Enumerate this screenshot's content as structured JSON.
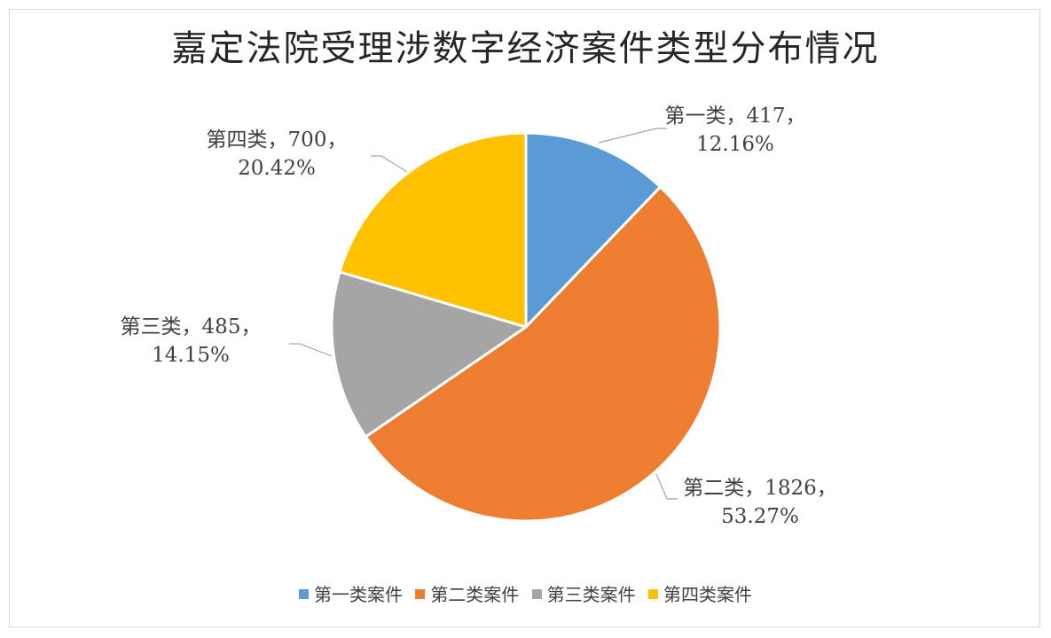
{
  "chart_data": {
    "type": "pie",
    "title": "嘉定法院受理涉数字经济案件类型分布情况",
    "slices": [
      {
        "legend": "第一类案件",
        "label": "第一类",
        "value": 417,
        "percent": "12.16%",
        "color": "#5b9bd5"
      },
      {
        "legend": "第二类案件",
        "label": "第二类",
        "value": 1826,
        "percent": "53.27%",
        "color": "#ed7d31"
      },
      {
        "legend": "第三类案件",
        "label": "第三类",
        "value": 485,
        "percent": "14.15%",
        "color": "#a5a5a5"
      },
      {
        "legend": "第四类案件",
        "label": "第四类",
        "value": 700,
        "percent": "20.42%",
        "color": "#ffc000"
      }
    ],
    "legend_position": "bottom"
  }
}
